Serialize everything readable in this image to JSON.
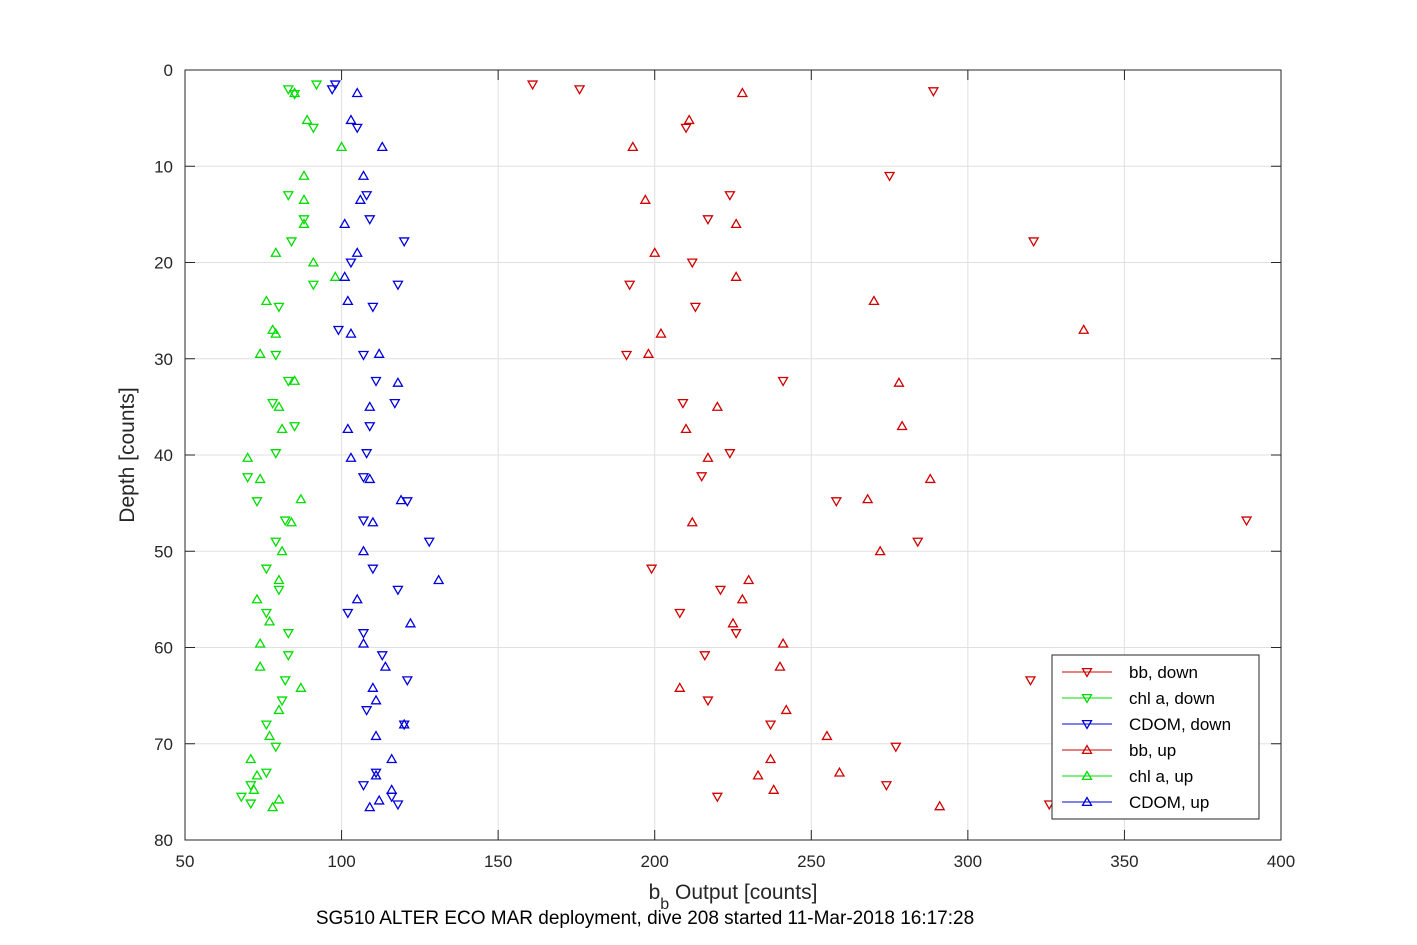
{
  "chart_data": {
    "type": "scatter",
    "xlabel_main": "b",
    "xlabel_sub": "b",
    "xlabel_rest": " Output [counts]",
    "ylabel": "Depth [counts]",
    "caption": "SG510 ALTER ECO MAR deployment, dive 208 started 11-Mar-2018 16:17:28",
    "xlim": [
      50,
      400
    ],
    "ylim": [
      0,
      80
    ],
    "y_reversed": true,
    "grid": true,
    "legend_position": "bottom-right",
    "xticks": [
      50,
      100,
      150,
      200,
      250,
      300,
      350,
      400
    ],
    "yticks": [
      0,
      10,
      20,
      30,
      40,
      50,
      60,
      70,
      80
    ],
    "series": [
      {
        "name": "bb, down",
        "marker": "triangle-down",
        "color": "#d00000",
        "points": [
          [
            161,
            1.5
          ],
          [
            176,
            2
          ],
          [
            289,
            2.2
          ],
          [
            210,
            6
          ],
          [
            275,
            11
          ],
          [
            321,
            17.8
          ],
          [
            224,
            13
          ],
          [
            217,
            15.5
          ],
          [
            212,
            20
          ],
          [
            192,
            22.3
          ],
          [
            213,
            24.6
          ],
          [
            191,
            29.6
          ],
          [
            241,
            32.3
          ],
          [
            209,
            34.6
          ],
          [
            224,
            39.8
          ],
          [
            215,
            42.2
          ],
          [
            389,
            46.8
          ],
          [
            199,
            51.8
          ],
          [
            221,
            54
          ],
          [
            208,
            56.4
          ],
          [
            226,
            58.5
          ],
          [
            216,
            60.8
          ],
          [
            320,
            63.4
          ],
          [
            217,
            65.5
          ],
          [
            237,
            68
          ],
          [
            277,
            70.3
          ],
          [
            274,
            74.3
          ],
          [
            220,
            75.5
          ],
          [
            326,
            76.3
          ],
          [
            284,
            49
          ],
          [
            258,
            44.8
          ]
        ]
      },
      {
        "name": "chl a, down",
        "marker": "triangle-down",
        "color": "#00dd00",
        "points": [
          [
            92,
            1.5
          ],
          [
            83,
            2
          ],
          [
            85,
            2.5
          ],
          [
            91,
            6
          ],
          [
            83,
            13
          ],
          [
            88,
            15.5
          ],
          [
            84,
            17.8
          ],
          [
            91,
            22.3
          ],
          [
            80,
            24.6
          ],
          [
            79,
            29.6
          ],
          [
            83,
            32.3
          ],
          [
            78,
            34.6
          ],
          [
            85,
            37
          ],
          [
            79,
            39.8
          ],
          [
            70,
            42.3
          ],
          [
            73,
            44.8
          ],
          [
            82,
            46.8
          ],
          [
            79,
            49
          ],
          [
            76,
            51.8
          ],
          [
            80,
            54
          ],
          [
            76,
            56.4
          ],
          [
            83,
            58.5
          ],
          [
            83,
            60.8
          ],
          [
            82,
            63.4
          ],
          [
            81,
            65.5
          ],
          [
            76,
            68
          ],
          [
            76,
            73
          ],
          [
            79,
            70.3
          ],
          [
            71,
            74.3
          ],
          [
            68,
            75.5
          ],
          [
            71,
            76.2
          ]
        ]
      },
      {
        "name": "CDOM, down",
        "marker": "triangle-down",
        "color": "#0000dd",
        "points": [
          [
            98,
            1.5
          ],
          [
            97,
            2
          ],
          [
            105,
            6
          ],
          [
            108,
            13
          ],
          [
            109,
            15.5
          ],
          [
            120,
            17.8
          ],
          [
            103,
            20
          ],
          [
            118,
            22.3
          ],
          [
            110,
            24.6
          ],
          [
            99,
            27
          ],
          [
            107,
            29.6
          ],
          [
            111,
            32.3
          ],
          [
            117,
            34.6
          ],
          [
            109,
            37
          ],
          [
            108,
            39.8
          ],
          [
            107,
            42.3
          ],
          [
            121,
            44.8
          ],
          [
            107,
            46.8
          ],
          [
            128,
            49
          ],
          [
            110,
            51.8
          ],
          [
            118,
            54
          ],
          [
            102,
            56.4
          ],
          [
            107,
            58.5
          ],
          [
            113,
            60.8
          ],
          [
            121,
            63.4
          ],
          [
            108,
            66.5
          ],
          [
            120,
            68
          ],
          [
            111,
            73
          ],
          [
            107,
            74.3
          ],
          [
            116,
            75.5
          ],
          [
            118,
            76.3
          ]
        ]
      },
      {
        "name": "bb, up",
        "marker": "triangle-up",
        "color": "#d00000",
        "points": [
          [
            228,
            2.4
          ],
          [
            211,
            5.2
          ],
          [
            193,
            8
          ],
          [
            197,
            13.5
          ],
          [
            226,
            16
          ],
          [
            200,
            19
          ],
          [
            226,
            21.5
          ],
          [
            270,
            24
          ],
          [
            337,
            27
          ],
          [
            202,
            27.4
          ],
          [
            198,
            29.5
          ],
          [
            278,
            32.5
          ],
          [
            220,
            35
          ],
          [
            279,
            37
          ],
          [
            210,
            37.3
          ],
          [
            217,
            40.3
          ],
          [
            288,
            42.5
          ],
          [
            268,
            44.6
          ],
          [
            212,
            47
          ],
          [
            272,
            50
          ],
          [
            230,
            53
          ],
          [
            228,
            55
          ],
          [
            225,
            57.5
          ],
          [
            241,
            59.6
          ],
          [
            240,
            62
          ],
          [
            208,
            64.2
          ],
          [
            242,
            66.5
          ],
          [
            255,
            69.2
          ],
          [
            237,
            71.6
          ],
          [
            259,
            73
          ],
          [
            233,
            73.3
          ],
          [
            238,
            74.8
          ],
          [
            291,
            76.5
          ]
        ]
      },
      {
        "name": "chl a, up",
        "marker": "triangle-up",
        "color": "#00dd00",
        "points": [
          [
            85,
            2.4
          ],
          [
            89,
            5.2
          ],
          [
            100,
            8
          ],
          [
            88,
            11
          ],
          [
            88,
            13.5
          ],
          [
            88,
            16
          ],
          [
            79,
            19
          ],
          [
            91,
            20
          ],
          [
            98,
            21.5
          ],
          [
            76,
            24
          ],
          [
            78,
            27
          ],
          [
            79,
            27.4
          ],
          [
            74,
            29.5
          ],
          [
            85,
            32.3
          ],
          [
            80,
            35
          ],
          [
            81,
            37.3
          ],
          [
            70,
            40.3
          ],
          [
            74,
            42.5
          ],
          [
            87,
            44.6
          ],
          [
            84,
            47
          ],
          [
            81,
            50
          ],
          [
            80,
            53
          ],
          [
            73,
            55
          ],
          [
            77,
            57.3
          ],
          [
            74,
            59.6
          ],
          [
            74,
            62
          ],
          [
            87,
            64.2
          ],
          [
            80,
            66.5
          ],
          [
            77,
            69.2
          ],
          [
            71,
            71.6
          ],
          [
            73,
            73.3
          ],
          [
            72,
            74.8
          ],
          [
            80,
            75.8
          ],
          [
            78,
            76.6
          ]
        ]
      },
      {
        "name": "CDOM, up",
        "marker": "triangle-up",
        "color": "#0000dd",
        "points": [
          [
            105,
            2.4
          ],
          [
            103,
            5.2
          ],
          [
            113,
            8
          ],
          [
            107,
            11
          ],
          [
            106,
            13.5
          ],
          [
            101,
            16
          ],
          [
            105,
            19
          ],
          [
            101,
            21.5
          ],
          [
            102,
            24
          ],
          [
            103,
            27.4
          ],
          [
            112,
            29.5
          ],
          [
            118,
            32.5
          ],
          [
            109,
            35
          ],
          [
            102,
            37.3
          ],
          [
            103,
            40.3
          ],
          [
            109,
            42.5
          ],
          [
            119,
            44.7
          ],
          [
            110,
            47
          ],
          [
            107,
            50
          ],
          [
            131,
            53
          ],
          [
            105,
            55
          ],
          [
            122,
            57.5
          ],
          [
            107,
            59.6
          ],
          [
            114,
            62
          ],
          [
            110,
            64.2
          ],
          [
            111,
            65.5
          ],
          [
            120,
            68
          ],
          [
            111,
            69.2
          ],
          [
            116,
            71.6
          ],
          [
            111,
            73.3
          ],
          [
            116,
            74.8
          ],
          [
            112,
            75.9
          ],
          [
            109,
            76.6
          ]
        ]
      }
    ]
  }
}
